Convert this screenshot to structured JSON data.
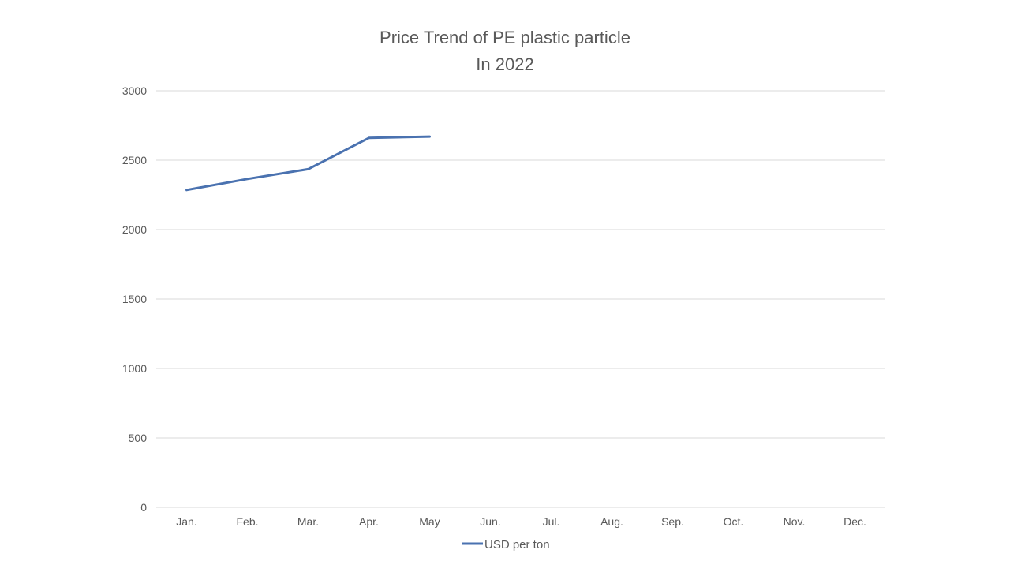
{
  "chart_data": {
    "type": "line",
    "title": [
      "Price Trend of PE plastic particle",
      "In 2022"
    ],
    "xlabel": "",
    "ylabel": "",
    "categories": [
      "Jan.",
      "Feb.",
      "Mar.",
      "Apr.",
      "May",
      "Jun.",
      "Jul.",
      "Aug.",
      "Sep.",
      "Oct.",
      "Nov.",
      "Dec."
    ],
    "series": [
      {
        "name": "USD per ton",
        "color": "#4a72b0",
        "values": [
          2285,
          2365,
          2435,
          2660,
          2670,
          null,
          null,
          null,
          null,
          null,
          null,
          null
        ]
      }
    ],
    "ylim": [
      0,
      3000
    ],
    "yticks": [
      0,
      500,
      1000,
      1500,
      2000,
      2500,
      3000
    ],
    "grid": "horizontal",
    "legend": "bottom"
  }
}
